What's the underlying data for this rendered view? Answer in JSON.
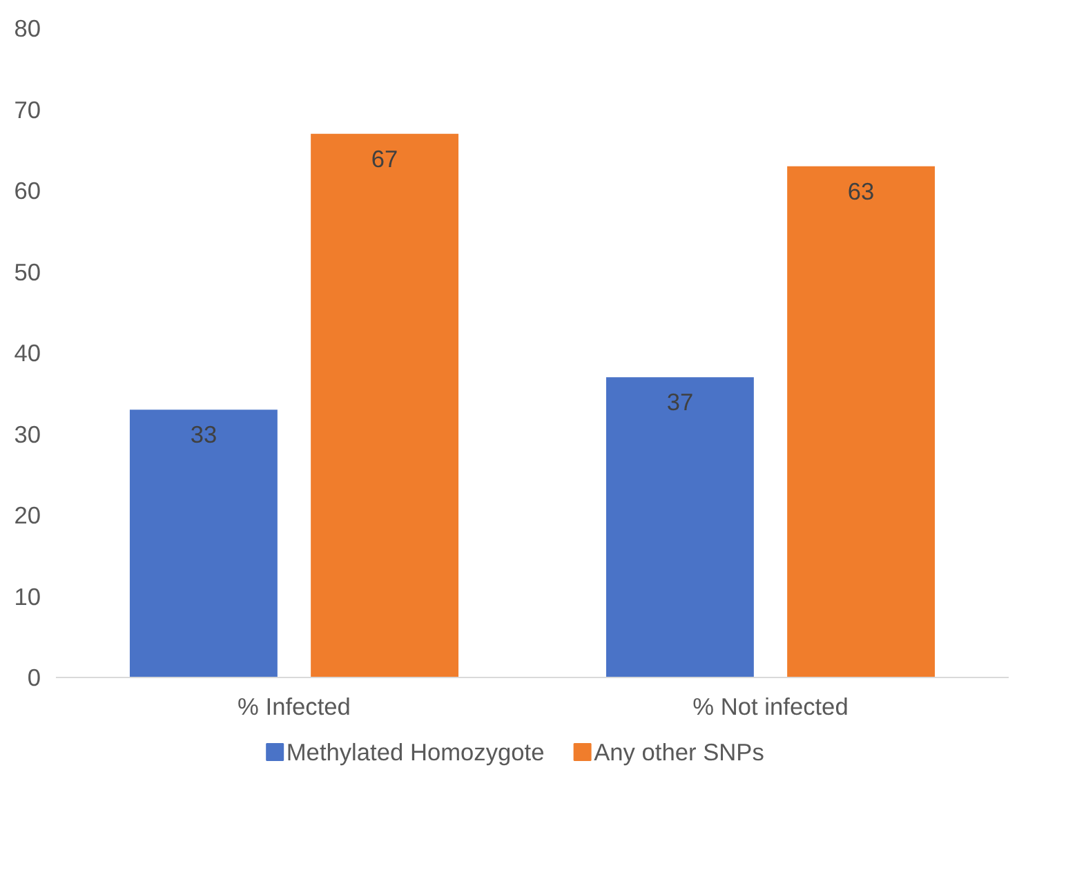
{
  "chart_data": {
    "type": "bar",
    "categories": [
      "% Infected",
      "% Not infected"
    ],
    "series": [
      {
        "name": "Methylated Homozygote",
        "color": "#4a73c7",
        "values": [
          33,
          37
        ]
      },
      {
        "name": "Any other SNPs",
        "color": "#f07d2c",
        "values": [
          67,
          63
        ]
      }
    ],
    "ylim": [
      0,
      80
    ],
    "yticks": [
      0,
      10,
      20,
      30,
      40,
      50,
      60,
      70,
      80
    ],
    "grid": false,
    "legend": "bottom",
    "data_labels": true
  }
}
